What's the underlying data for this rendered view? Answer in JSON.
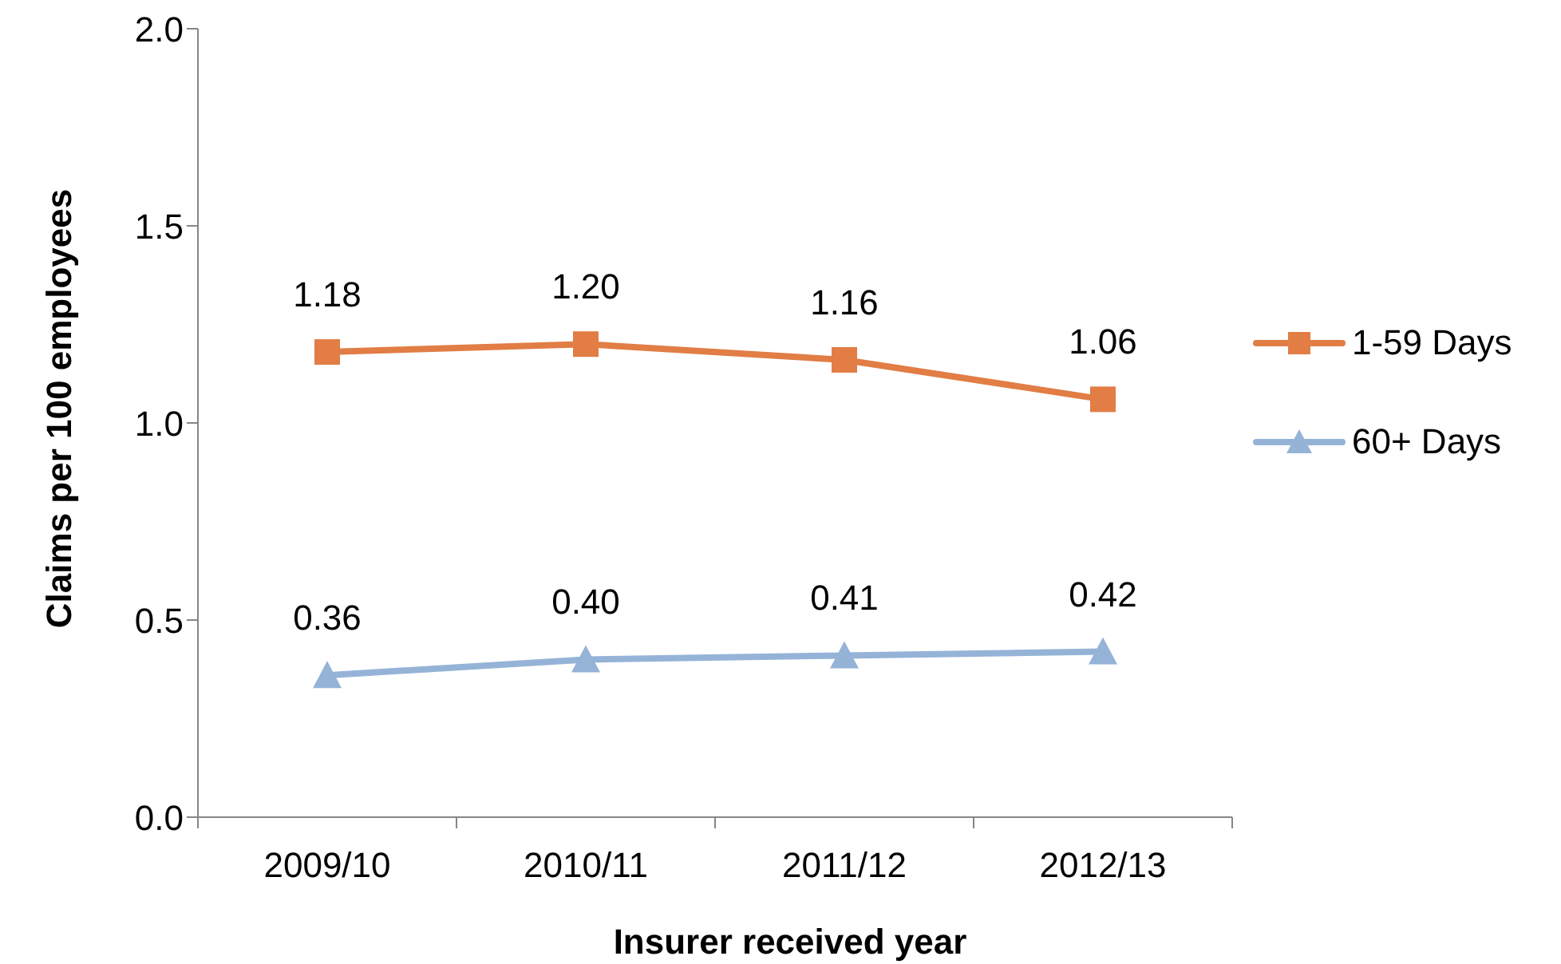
{
  "chart_data": {
    "type": "line",
    "xlabel": "Insurer received year",
    "ylabel": "Claims per 100 employees",
    "categories": [
      "2009/10",
      "2010/11",
      "2011/12",
      "2012/13"
    ],
    "series": [
      {
        "name": "1-59 Days",
        "color": "#e17d45",
        "marker": "square",
        "values": [
          1.18,
          1.2,
          1.16,
          1.06
        ],
        "value_labels": [
          "1.18",
          "1.20",
          "1.16",
          "1.06"
        ]
      },
      {
        "name": "60+ Days",
        "color": "#95b3d7",
        "marker": "triangle",
        "values": [
          0.36,
          0.4,
          0.41,
          0.42
        ],
        "value_labels": [
          "0.36",
          "0.40",
          "0.41",
          "0.42"
        ]
      }
    ],
    "ylim": [
      0,
      2
    ],
    "yticks": [
      {
        "value": 0,
        "label": "0.0"
      },
      {
        "value": 0.5,
        "label": "0.5"
      },
      {
        "value": 1,
        "label": "1.0"
      },
      {
        "value": 1.5,
        "label": "1.5"
      },
      {
        "value": 2,
        "label": "2.0"
      }
    ],
    "legend": "right",
    "line_style": "solid"
  }
}
